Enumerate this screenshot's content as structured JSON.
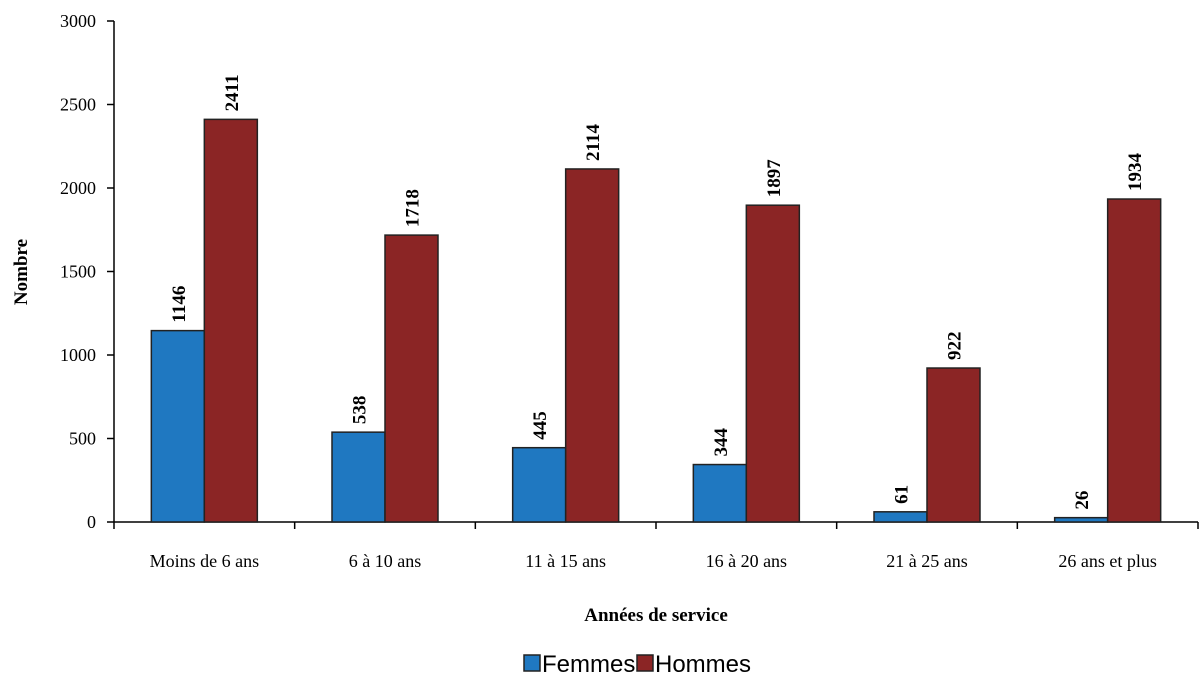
{
  "chart_data": {
    "type": "bar",
    "categories": [
      "Moins de 6 ans",
      "6 à 10 ans",
      "11 à 15 ans",
      "16 à 20 ans",
      "21 à 25 ans",
      "26 ans et plus"
    ],
    "series": [
      {
        "name": "Femmes",
        "values": [
          1146,
          538,
          445,
          344,
          61,
          26
        ],
        "color": "#1f78c1"
      },
      {
        "name": "Hommes",
        "values": [
          2411,
          1718,
          2114,
          1897,
          922,
          1934
        ],
        "color": "#8b2525"
      }
    ],
    "title": "",
    "xlabel": "Années de service",
    "ylabel": "Nombre",
    "ylim": [
      0,
      3000
    ],
    "yticks": [
      0,
      500,
      1000,
      1500,
      2000,
      2500,
      3000
    ],
    "grid": false,
    "legend_position": "bottom-center",
    "data_labels": true
  }
}
